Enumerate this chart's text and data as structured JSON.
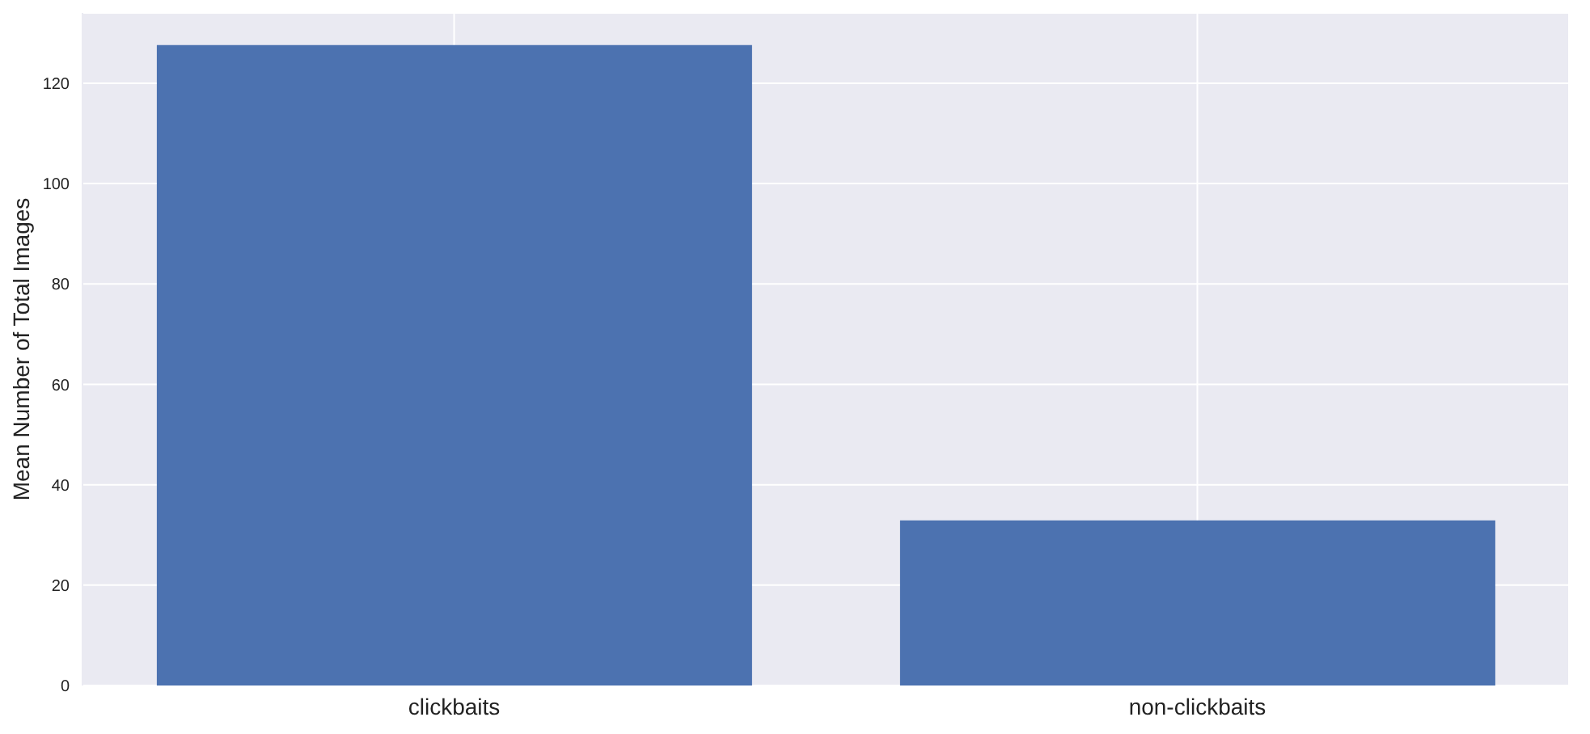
{
  "chart_data": {
    "type": "bar",
    "ylabel": "Mean Number of Total Images",
    "categories": [
      "clickbaits",
      "non-clickbaits"
    ],
    "values": [
      127.6,
      32.9
    ],
    "color": "#4c72b0",
    "ylim": [
      0,
      134
    ],
    "yticks": [
      0,
      20,
      40,
      60,
      80,
      100,
      120
    ],
    "grid": true
  }
}
